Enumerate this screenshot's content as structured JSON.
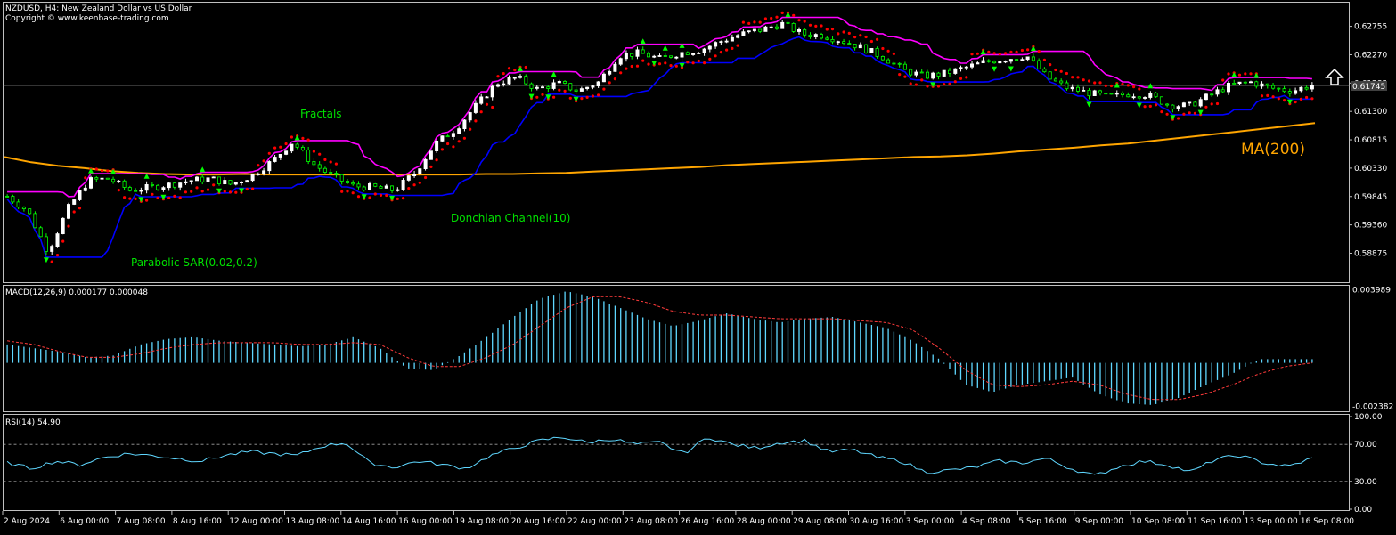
{
  "header": {
    "symbol_line": "NZDUSD, H4:  New Zealand Dollar vs US Dollar",
    "copyright": "Copyright © www.keenbase-trading.com"
  },
  "annotations": {
    "fractals": "Fractals",
    "donchian": "Donchian Channel(10)",
    "sar": "Parabolic SAR(0.02,0.2)",
    "ma": "MA(200)"
  },
  "colors": {
    "background": "#000000",
    "bull_candle": "#ffffff",
    "bear_candle": "#00ff00",
    "donchian_upper": "#ff00ff",
    "donchian_lower": "#0000ff",
    "sar": "#ff0000",
    "ma": "#ffa500",
    "fractal": "#00ff00",
    "macd_hist": "#5fd7ff",
    "macd_signal": "#ff3b3b",
    "rsi": "#5fd7ff",
    "annotation_green": "#00e000",
    "annotation_orange": "#ffa500"
  },
  "current_price_label": "0.61745",
  "x_axis_labels": [
    "2 Aug 2024",
    "6 Aug 00:00",
    "7 Aug 08:00",
    "8 Aug 16:00",
    "12 Aug 00:00",
    "13 Aug 08:00",
    "14 Aug 16:00",
    "16 Aug 00:00",
    "19 Aug 08:00",
    "20 Aug 16:00",
    "22 Aug 00:00",
    "23 Aug 08:00",
    "26 Aug 16:00",
    "28 Aug 00:00",
    "29 Aug 08:00",
    "30 Aug 16:00",
    "3 Sep 00:00",
    "4 Sep 08:00",
    "5 Sep 16:00",
    "9 Sep 00:00",
    "10 Sep 08:00",
    "11 Sep 16:00",
    "13 Sep 00:00",
    "16 Sep 08:00"
  ],
  "arrow_icon": "up-arrow-icon",
  "chart_data": [
    {
      "type": "line",
      "panel": "price",
      "y_ticks": [
        0.62755,
        0.6227,
        0.61785,
        0.613,
        0.60815,
        0.6033,
        0.59845,
        0.5936,
        0.58875
      ],
      "ylim": [
        0.5838,
        0.6316
      ],
      "current_price": 0.61745,
      "series": [
        {
          "name": "Price",
          "values": [
            0.5985,
            0.596,
            0.589,
            0.5965,
            0.6012,
            0.6015,
            0.5995,
            0.6,
            0.6005,
            0.6012,
            0.6015,
            0.6005,
            0.602,
            0.6045,
            0.6078,
            0.604,
            0.6018,
            0.6002,
            0.6,
            0.5995,
            0.6025,
            0.6075,
            0.61,
            0.614,
            0.6178,
            0.6188,
            0.6168,
            0.6178,
            0.6165,
            0.618,
            0.6225,
            0.623,
            0.622,
            0.623,
            0.6235,
            0.625,
            0.6262,
            0.627,
            0.628,
            0.6262,
            0.626,
            0.625,
            0.6238,
            0.6222,
            0.62,
            0.619,
            0.6195,
            0.6205,
            0.6215,
            0.622,
            0.6225,
            0.6188,
            0.617,
            0.6162,
            0.6155,
            0.616,
            0.6158,
            0.614,
            0.614,
            0.6158,
            0.6175,
            0.618,
            0.617,
            0.6165,
            0.6175
          ]
        },
        {
          "name": "MA(200)",
          "values": [
            0.6052,
            0.6043,
            0.6037,
            0.6033,
            0.6028,
            0.6025,
            0.6023,
            0.6022,
            0.6022,
            0.6023,
            0.6022,
            0.6022,
            0.6022,
            0.6022,
            0.6022,
            0.6022,
            0.6022,
            0.6022,
            0.6023,
            0.6023,
            0.6024,
            0.6025,
            0.6027,
            0.6029,
            0.6031,
            0.6033,
            0.6035,
            0.6038,
            0.604,
            0.6042,
            0.6044,
            0.6046,
            0.6048,
            0.605,
            0.6052,
            0.6053,
            0.6055,
            0.6058,
            0.6062,
            0.6065,
            0.6068,
            0.6072,
            0.6075,
            0.608,
            0.6085,
            0.609,
            0.6095,
            0.61,
            0.6105,
            0.611
          ]
        },
        {
          "name": "Donchian Channel(10)",
          "values": []
        },
        {
          "name": "Parabolic SAR(0.02,0.2)",
          "values": []
        }
      ]
    },
    {
      "type": "bar",
      "panel": "macd",
      "title": "MACD(12,26,9) 0.000177 0.000048",
      "y_labels": [
        "0.003989",
        "-0.002382"
      ],
      "ylim": [
        -0.00264,
        0.00415
      ],
      "series": [
        {
          "name": "Histogram",
          "values": [
            0.001,
            0.0008,
            0.0006,
            0.0003,
            0.0004,
            0.001,
            0.0013,
            0.0014,
            0.0012,
            0.0011,
            0.001,
            0.0009,
            0.001,
            0.0014,
            0.0008,
            -0.0003,
            -0.0004,
            0.0004,
            0.0014,
            0.0025,
            0.0035,
            0.0039,
            0.0036,
            0.003,
            0.0024,
            0.002,
            0.0023,
            0.0027,
            0.0024,
            0.0022,
            0.0024,
            0.0025,
            0.0022,
            0.0019,
            0.0012,
            0.0002,
            -0.0012,
            -0.0016,
            -0.0012,
            -0.001,
            -0.0008,
            -0.0017,
            -0.0022,
            -0.0023,
            -0.0019,
            -0.0012,
            -0.0006,
            0.0002,
            0.0002,
            0.0002
          ]
        },
        {
          "name": "Signal",
          "values": [
            0.0012,
            0.001,
            0.0006,
            0.0003,
            0.0003,
            0.0005,
            0.0008,
            0.001,
            0.0011,
            0.0011,
            0.0011,
            0.001,
            0.001,
            0.0011,
            0.001,
            0.0003,
            -0.0002,
            -0.0002,
            0.0003,
            0.001,
            0.002,
            0.003,
            0.0036,
            0.0036,
            0.0033,
            0.0028,
            0.0026,
            0.0026,
            0.0025,
            0.0024,
            0.0024,
            0.0024,
            0.0023,
            0.0022,
            0.0018,
            0.0008,
            -0.0004,
            -0.0012,
            -0.0013,
            -0.0012,
            -0.001,
            -0.0012,
            -0.0017,
            -0.002,
            -0.002,
            -0.0017,
            -0.0012,
            -0.0006,
            -0.0002,
            0.0
          ]
        }
      ]
    },
    {
      "type": "line",
      "panel": "rsi",
      "title": "RSI(14) 54.90",
      "y_ticks": [
        100,
        70,
        30,
        0
      ],
      "y_labels": [
        "100.00",
        "70.00",
        "30.00",
        "0.00"
      ],
      "levels": [
        70,
        30
      ],
      "ylim": [
        0,
        100
      ],
      "series": [
        {
          "name": "RSI(14)",
          "values": [
            50,
            44,
            52,
            48,
            56,
            60,
            58,
            55,
            52,
            58,
            62,
            60,
            58,
            68,
            72,
            50,
            45,
            52,
            48,
            44,
            58,
            66,
            74,
            78,
            72,
            76,
            70,
            72,
            60,
            78,
            70,
            66,
            72,
            74,
            62,
            64,
            56,
            52,
            40,
            42,
            45,
            52,
            50,
            55,
            44,
            36,
            46,
            52,
            48,
            40,
            54,
            58,
            50,
            46,
            55
          ]
        }
      ]
    }
  ]
}
